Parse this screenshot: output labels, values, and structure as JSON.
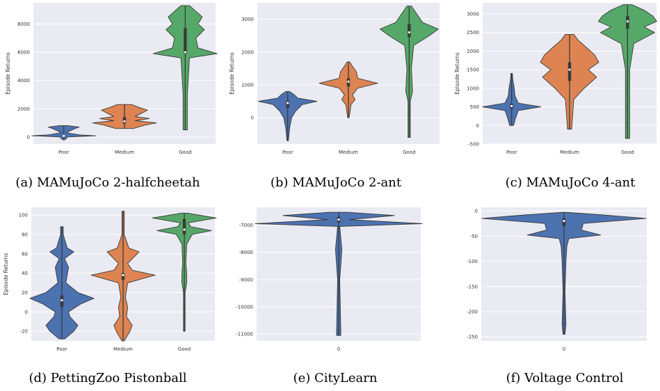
{
  "colors": {
    "blue": "#4c72b0",
    "orange": "#dd8452",
    "green": "#55a868",
    "panel_bg": "#eaeaf2",
    "grid": "#ffffff",
    "line": "#3a3a3a"
  },
  "chart_data": [
    {
      "type": "violin",
      "caption": "(a) MAMuJoCo 2-halfcheetah",
      "ylabel": "Episode Returns",
      "categories": [
        "Poor",
        "Medium",
        "Good"
      ],
      "ylim": [
        -500,
        9500
      ],
      "yticks": [
        0,
        2000,
        4000,
        6000,
        8000
      ],
      "series": [
        {
          "category": "Poor",
          "color": "#4c72b0",
          "min": -200,
          "max": 800,
          "q1": 30,
          "median": 80,
          "q3": 130,
          "dens": [
            [
              -200,
              2
            ],
            [
              0,
              8
            ],
            [
              80,
              62
            ],
            [
              150,
              30
            ],
            [
              300,
              5
            ],
            [
              600,
              22
            ],
            [
              700,
              30
            ],
            [
              800,
              8
            ]
          ]
        },
        {
          "category": "Medium",
          "color": "#dd8452",
          "min": 600,
          "max": 2300,
          "q1": 950,
          "median": 1100,
          "q3": 1400,
          "dens": [
            [
              600,
              5
            ],
            [
              850,
              12
            ],
            [
              1000,
              18
            ],
            [
              1150,
              6
            ],
            [
              1300,
              14
            ],
            [
              1450,
              6
            ],
            [
              1700,
              10
            ],
            [
              1900,
              13
            ],
            [
              2100,
              8
            ],
            [
              2300,
              4
            ]
          ]
        },
        {
          "category": "Good",
          "color": "#55a868",
          "min": 500,
          "max": 9300,
          "q1": 5900,
          "median": 6000,
          "q3": 7700,
          "dens": [
            [
              500,
              1
            ],
            [
              3000,
              1
            ],
            [
              5600,
              2
            ],
            [
              5900,
              15
            ],
            [
              6300,
              6
            ],
            [
              7000,
              5
            ],
            [
              7600,
              9
            ],
            [
              8000,
              6
            ],
            [
              8500,
              8
            ],
            [
              9300,
              2
            ]
          ]
        }
      ]
    },
    {
      "type": "violin",
      "caption": "(b) MAMuJoCo 2-ant",
      "ylabel": "Episode Returns",
      "categories": [
        "Poor",
        "Medium",
        "Good"
      ],
      "ylim": [
        -800,
        3500
      ],
      "yticks": [
        0,
        1000,
        2000,
        3000
      ],
      "series": [
        {
          "category": "Poor",
          "color": "#4c72b0",
          "min": -700,
          "max": 800,
          "q1": 300,
          "median": 450,
          "q3": 520,
          "dens": [
            [
              -700,
              1
            ],
            [
              -300,
              3
            ],
            [
              0,
              6
            ],
            [
              200,
              12
            ],
            [
              400,
              22
            ],
            [
              500,
              44
            ],
            [
              600,
              15
            ],
            [
              700,
              10
            ],
            [
              800,
              3
            ]
          ]
        },
        {
          "category": "Medium",
          "color": "#dd8452",
          "min": 0,
          "max": 1700,
          "q1": 950,
          "median": 1100,
          "q3": 1200,
          "dens": [
            [
              0,
              1
            ],
            [
              400,
              4
            ],
            [
              550,
              10
            ],
            [
              700,
              6
            ],
            [
              900,
              14
            ],
            [
              1050,
              44
            ],
            [
              1200,
              14
            ],
            [
              1400,
              12
            ],
            [
              1600,
              5
            ],
            [
              1700,
              2
            ]
          ]
        },
        {
          "category": "Good",
          "color": "#55a868",
          "min": -600,
          "max": 3400,
          "q1": 2450,
          "median": 2600,
          "q3": 2850,
          "dens": [
            [
              -600,
              1
            ],
            [
              500,
              1
            ],
            [
              800,
              3
            ],
            [
              1500,
              2
            ],
            [
              2200,
              4
            ],
            [
              2500,
              18
            ],
            [
              2700,
              26
            ],
            [
              2900,
              12
            ],
            [
              3100,
              8
            ],
            [
              3400,
              2
            ]
          ]
        }
      ]
    },
    {
      "type": "violin",
      "caption": "(c) MAMuJoCo 4-ant",
      "ylabel": "Episode Returns",
      "categories": [
        "Poor",
        "Medium",
        "Good"
      ],
      "ylim": [
        -500,
        3300
      ],
      "yticks": [
        -500,
        0,
        500,
        1000,
        1500,
        2000,
        2500,
        3000
      ],
      "series": [
        {
          "category": "Poor",
          "color": "#4c72b0",
          "min": 0,
          "max": 1400,
          "q1": 450,
          "median": 520,
          "q3": 580,
          "dens": [
            [
              0,
              3
            ],
            [
              200,
              6
            ],
            [
              400,
              10
            ],
            [
              500,
              44
            ],
            [
              600,
              10
            ],
            [
              800,
              5
            ],
            [
              1000,
              4
            ],
            [
              1200,
              2
            ],
            [
              1400,
              1
            ]
          ]
        },
        {
          "category": "Medium",
          "color": "#dd8452",
          "min": -100,
          "max": 2450,
          "q1": 1200,
          "median": 1500,
          "q3": 1700,
          "dens": [
            [
              -100,
              1
            ],
            [
              700,
              2
            ],
            [
              1000,
              7
            ],
            [
              1300,
              13
            ],
            [
              1500,
              9
            ],
            [
              1700,
              14
            ],
            [
              1900,
              12
            ],
            [
              2100,
              8
            ],
            [
              2300,
              4
            ],
            [
              2450,
              2
            ]
          ]
        },
        {
          "category": "Good",
          "color": "#55a868",
          "min": -350,
          "max": 3250,
          "q1": 2600,
          "median": 2800,
          "q3": 2950,
          "dens": [
            [
              -350,
              1
            ],
            [
              1500,
              1
            ],
            [
              2200,
              3
            ],
            [
              2500,
              13
            ],
            [
              2650,
              8
            ],
            [
              2800,
              14
            ],
            [
              2950,
              12
            ],
            [
              3100,
              8
            ],
            [
              3250,
              2
            ]
          ]
        }
      ]
    },
    {
      "type": "violin",
      "caption": "(d) PettingZoo Pistonball",
      "ylabel": "Episode Returns",
      "categories": [
        "Poor",
        "Medium",
        "Good"
      ],
      "ylim": [
        -30,
        108
      ],
      "yticks": [
        -20,
        0,
        20,
        40,
        60,
        80,
        100
      ],
      "series": [
        {
          "category": "Poor",
          "color": "#4c72b0",
          "min": -28,
          "max": 88,
          "q1": 5,
          "median": 12,
          "q3": 17,
          "dens": [
            [
              -28,
              2
            ],
            [
              -20,
              9
            ],
            [
              -14,
              12
            ],
            [
              -5,
              6
            ],
            [
              0,
              5
            ],
            [
              8,
              14
            ],
            [
              14,
              24
            ],
            [
              20,
              12
            ],
            [
              30,
              3
            ],
            [
              46,
              5
            ],
            [
              55,
              2
            ],
            [
              62,
              9
            ],
            [
              66,
              4
            ],
            [
              80,
              1
            ],
            [
              88,
              1
            ]
          ]
        },
        {
          "category": "Medium",
          "color": "#dd8452",
          "min": -30,
          "max": 104,
          "q1": 33,
          "median": 38,
          "q3": 40,
          "dens": [
            [
              -30,
              1
            ],
            [
              -20,
              6
            ],
            [
              -14,
              8
            ],
            [
              -5,
              3
            ],
            [
              5,
              4
            ],
            [
              15,
              2
            ],
            [
              30,
              4
            ],
            [
              38,
              28
            ],
            [
              43,
              8
            ],
            [
              50,
              4
            ],
            [
              62,
              14
            ],
            [
              66,
              5
            ],
            [
              80,
              1
            ],
            [
              95,
              1
            ],
            [
              104,
              1
            ]
          ]
        },
        {
          "category": "Good",
          "color": "#55a868",
          "min": -20,
          "max": 102,
          "q1": 80,
          "median": 85,
          "q3": 96,
          "dens": [
            [
              -20,
              1
            ],
            [
              20,
              1
            ],
            [
              30,
              3
            ],
            [
              40,
              3
            ],
            [
              50,
              2
            ],
            [
              70,
              3
            ],
            [
              80,
              10
            ],
            [
              84,
              34
            ],
            [
              88,
              8
            ],
            [
              92,
              5
            ],
            [
              97,
              40
            ],
            [
              100,
              18
            ],
            [
              102,
              4
            ]
          ]
        }
      ]
    },
    {
      "type": "violin",
      "caption": "(e) CityLearn",
      "ylabel": "",
      "categories": [
        "0"
      ],
      "ylim": [
        -11250,
        -6350
      ],
      "yticks": [
        -11000,
        -10000,
        -9000,
        -8000,
        -7000
      ],
      "series": [
        {
          "category": "0",
          "color": "#4c72b0",
          "min": -11050,
          "max": -6530,
          "q1": -6900,
          "median": -6800,
          "q3": -6700,
          "dens": [
            [
              -11050,
              2
            ],
            [
              -10950,
              2
            ],
            [
              -9000,
              1
            ],
            [
              -7900,
              3
            ],
            [
              -7050,
              1
            ],
            [
              -6950,
              78
            ],
            [
              -6800,
              10
            ],
            [
              -6650,
              52
            ],
            [
              -6530,
              8
            ]
          ]
        }
      ]
    },
    {
      "type": "violin",
      "caption": "(f) Voltage Control",
      "ylabel": "",
      "categories": [
        "0"
      ],
      "ylim": [
        -258,
        7
      ],
      "yticks": [
        -250,
        -200,
        -150,
        -100,
        -50,
        0
      ],
      "series": [
        {
          "category": "0",
          "color": "#4c72b0",
          "min": -245,
          "max": -3,
          "q1": -30,
          "median": -20,
          "q3": -15,
          "dens": [
            [
              -245,
              1
            ],
            [
              -225,
              2
            ],
            [
              -160,
              1
            ],
            [
              -100,
              2
            ],
            [
              -70,
              3
            ],
            [
              -55,
              5
            ],
            [
              -48,
              38
            ],
            [
              -38,
              18
            ],
            [
              -25,
              20
            ],
            [
              -15,
              85
            ],
            [
              -8,
              40
            ],
            [
              -3,
              2
            ]
          ]
        }
      ]
    }
  ]
}
